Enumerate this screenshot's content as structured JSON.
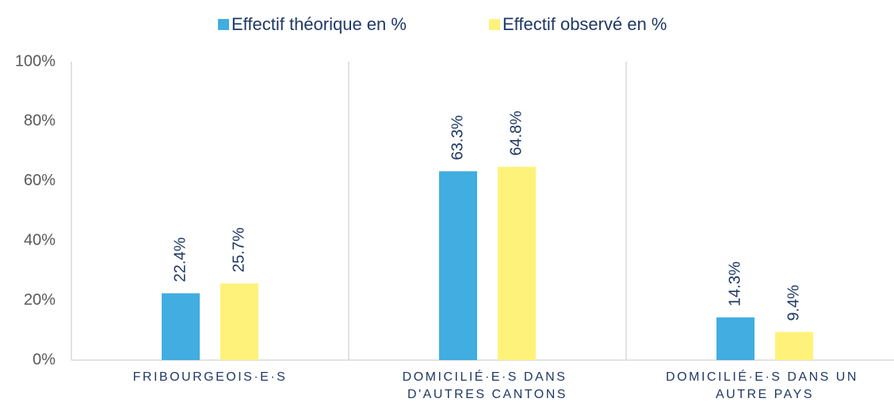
{
  "chart_data": {
    "type": "bar",
    "categories": [
      "FRIBOURGEOIS·E·S",
      "DOMICILIÉ·E·S DANS D'AUTRES CANTONS",
      "DOMICILIÉ·E·S DANS UN AUTRE PAYS"
    ],
    "series": [
      {
        "name": "Effectif théorique en %",
        "color": "#41ade0",
        "values": [
          22.4,
          63.3,
          14.3
        ],
        "value_labels": [
          "22.4%",
          "63.3%",
          "14.3%"
        ]
      },
      {
        "name": "Effectif observé en %",
        "color": "#fff27a",
        "values": [
          25.7,
          64.8,
          9.4
        ],
        "value_labels": [
          "25.7%",
          "64.8%",
          "9.4%"
        ]
      }
    ],
    "ylim": [
      0,
      100
    ],
    "yticks": [
      {
        "value": 0,
        "label": "0%"
      },
      {
        "value": 20,
        "label": "20%"
      },
      {
        "value": 40,
        "label": "40%"
      },
      {
        "value": 60,
        "label": "60%"
      },
      {
        "value": 80,
        "label": "80%"
      },
      {
        "value": 100,
        "label": "100%"
      }
    ],
    "legend": "top"
  }
}
